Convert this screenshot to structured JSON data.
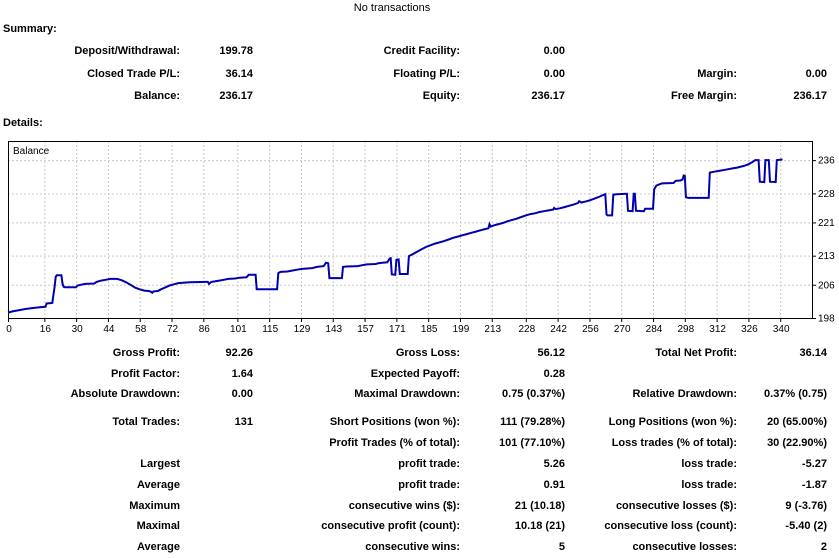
{
  "header": {
    "no_transactions": "No transactions"
  },
  "summary": {
    "title": "Summary:",
    "rows": [
      [
        [
          "Deposit/Withdrawal:",
          "199.78"
        ],
        [
          "Credit Facility:",
          "0.00"
        ],
        [
          "",
          ""
        ]
      ],
      [
        [
          "Closed Trade P/L:",
          "36.14"
        ],
        [
          "Floating P/L:",
          "0.00"
        ],
        [
          "Margin:",
          "0.00"
        ]
      ],
      [
        [
          "Balance:",
          "236.17"
        ],
        [
          "Equity:",
          "236.17"
        ],
        [
          "Free Margin:",
          "236.17"
        ]
      ]
    ]
  },
  "details": {
    "title": "Details:"
  },
  "stats": {
    "block1": [
      [
        [
          "Gross Profit:",
          "92.26"
        ],
        [
          "Gross Loss:",
          "56.12"
        ],
        [
          "Total Net Profit:",
          "36.14"
        ]
      ],
      [
        [
          "Profit Factor:",
          "1.64"
        ],
        [
          "Expected Payoff:",
          "0.28"
        ],
        [
          "",
          ""
        ]
      ],
      [
        [
          "Absolute Drawdown:",
          "0.00"
        ],
        [
          "Maximal Drawdown:",
          "0.75 (0.37%)"
        ],
        [
          "Relative Drawdown:",
          "0.37% (0.75)"
        ]
      ]
    ],
    "block2": [
      [
        [
          "Total Trades:",
          "131"
        ],
        [
          "Short Positions (won %):",
          "111 (79.28%)"
        ],
        [
          "Long Positions (won %):",
          "20 (65.00%)"
        ]
      ],
      [
        [
          "",
          ""
        ],
        [
          "Profit Trades (% of total):",
          "101 (77.10%)"
        ],
        [
          "Loss trades (% of total):",
          "30 (22.90%)"
        ]
      ],
      [
        [
          "Largest",
          ""
        ],
        [
          "profit trade:",
          "5.26"
        ],
        [
          "loss trade:",
          "-5.27"
        ]
      ],
      [
        [
          "Average",
          ""
        ],
        [
          "profit trade:",
          "0.91"
        ],
        [
          "loss trade:",
          "-1.87"
        ]
      ],
      [
        [
          "Maximum",
          ""
        ],
        [
          "consecutive wins ($):",
          "21 (10.18)"
        ],
        [
          "consecutive losses ($):",
          "9 (-3.76)"
        ]
      ],
      [
        [
          "Maximal",
          ""
        ],
        [
          "consecutive profit (count):",
          "10.18 (21)"
        ],
        [
          "consecutive loss (count):",
          "-5.40 (2)"
        ]
      ],
      [
        [
          "Average",
          ""
        ],
        [
          "consecutive wins:",
          "5"
        ],
        [
          "consecutive losses:",
          "2"
        ]
      ]
    ]
  },
  "chart_data": {
    "type": "line",
    "title": "Balance",
    "legend_label": "Balance",
    "x_ticks": [
      0,
      16,
      30,
      44,
      58,
      72,
      86,
      101,
      115,
      129,
      143,
      157,
      171,
      185,
      199,
      213,
      228,
      242,
      256,
      270,
      284,
      298,
      312,
      326,
      340
    ],
    "y_ticks": [
      198,
      206,
      213,
      221,
      228,
      236
    ],
    "y_gridlines": [
      206,
      213,
      221,
      228,
      236
    ],
    "x_range": [
      0,
      354
    ],
    "y_range": [
      198,
      240.6
    ],
    "line_color": "#0000B0",
    "grid_color": "#C9C9C9",
    "border_color": "#000000",
    "series": [
      {
        "name": "Balance",
        "points": [
          [
            0,
            199.3
          ],
          [
            2,
            199.6
          ],
          [
            5,
            199.9
          ],
          [
            8,
            200.2
          ],
          [
            11,
            200.4
          ],
          [
            14,
            200.6
          ],
          [
            16.5,
            200.7
          ],
          [
            17,
            201.5
          ],
          [
            19.5,
            201.6
          ],
          [
            20,
            203.5
          ],
          [
            20.5,
            205.5
          ],
          [
            21,
            207.9
          ],
          [
            21.5,
            208.3
          ],
          [
            23.5,
            208.3
          ],
          [
            24,
            206.3
          ],
          [
            24.5,
            205.5
          ],
          [
            25,
            205.4
          ],
          [
            30,
            205.4
          ],
          [
            30.5,
            205.8
          ],
          [
            32,
            206.0
          ],
          [
            34,
            206.2
          ],
          [
            38,
            206.3
          ],
          [
            39,
            206.7
          ],
          [
            41,
            207.0
          ],
          [
            43,
            207.2
          ],
          [
            45,
            207.4
          ],
          [
            48,
            207.4
          ],
          [
            50,
            207.1
          ],
          [
            52,
            206.6
          ],
          [
            54,
            206.0
          ],
          [
            56,
            205.3
          ],
          [
            58,
            204.9
          ],
          [
            60,
            204.6
          ],
          [
            62,
            204.5
          ],
          [
            63,
            204.3
          ],
          [
            63.5,
            204.1
          ],
          [
            64,
            204.4
          ],
          [
            66,
            204.5
          ],
          [
            67,
            204.8
          ],
          [
            69,
            205.3
          ],
          [
            71,
            205.8
          ],
          [
            73,
            206.1
          ],
          [
            75,
            206.4
          ],
          [
            77,
            206.5
          ],
          [
            80,
            206.6
          ],
          [
            87,
            206.7
          ],
          [
            88,
            206.7
          ],
          [
            88.5,
            206.2
          ],
          [
            89.5,
            206.7
          ],
          [
            91,
            206.8
          ],
          [
            93,
            207.0
          ],
          [
            95,
            207.2
          ],
          [
            97,
            207.4
          ],
          [
            100,
            207.5
          ],
          [
            102,
            207.7
          ],
          [
            105,
            207.8
          ],
          [
            106,
            208.4
          ],
          [
            109,
            208.4
          ],
          [
            109.5,
            204.9
          ],
          [
            118.5,
            204.9
          ],
          [
            119,
            208.8
          ],
          [
            120,
            209.1
          ],
          [
            123,
            209.2
          ],
          [
            125,
            209.4
          ],
          [
            127,
            209.6
          ],
          [
            129,
            209.8
          ],
          [
            131,
            209.9
          ],
          [
            134,
            210.0
          ],
          [
            136,
            210.3
          ],
          [
            139,
            210.5
          ],
          [
            140,
            211.3
          ],
          [
            141,
            211.2
          ],
          [
            141.5,
            207.6
          ],
          [
            147,
            207.6
          ],
          [
            147.5,
            210.3
          ],
          [
            149,
            210.4
          ],
          [
            154,
            210.5
          ],
          [
            156,
            210.7
          ],
          [
            158,
            210.9
          ],
          [
            162,
            211.0
          ],
          [
            163,
            211.2
          ],
          [
            167,
            211.4
          ],
          [
            168,
            212.3
          ],
          [
            168.5,
            212.4
          ],
          [
            169,
            208.5
          ],
          [
            170.5,
            208.4
          ],
          [
            171,
            212.0
          ],
          [
            172,
            212.1
          ],
          [
            172.5,
            208.6
          ],
          [
            176,
            208.6
          ],
          [
            176.5,
            212.9
          ],
          [
            178,
            213.3
          ],
          [
            180,
            213.9
          ],
          [
            182,
            214.5
          ],
          [
            184,
            215.1
          ],
          [
            186,
            215.5
          ],
          [
            188,
            215.9
          ],
          [
            190,
            216.2
          ],
          [
            192,
            216.5
          ],
          [
            194,
            216.9
          ],
          [
            196,
            217.3
          ],
          [
            198,
            217.6
          ],
          [
            200,
            217.9
          ],
          [
            202,
            218.2
          ],
          [
            204,
            218.5
          ],
          [
            206,
            218.8
          ],
          [
            208,
            219.1
          ],
          [
            210,
            219.4
          ],
          [
            211.5,
            219.6
          ],
          [
            212,
            220.6
          ],
          [
            212.5,
            220.0
          ],
          [
            214,
            220.3
          ],
          [
            216,
            220.6
          ],
          [
            218,
            220.9
          ],
          [
            220,
            221.3
          ],
          [
            222,
            221.6
          ],
          [
            224,
            221.9
          ],
          [
            226,
            222.3
          ],
          [
            228,
            222.7
          ],
          [
            230,
            223.0
          ],
          [
            232,
            223.2
          ],
          [
            234,
            223.5
          ],
          [
            236,
            223.7
          ],
          [
            238,
            223.9
          ],
          [
            240,
            224.1
          ],
          [
            240.5,
            224.5
          ],
          [
            241,
            224.2
          ],
          [
            243,
            224.4
          ],
          [
            245,
            224.7
          ],
          [
            247,
            225.0
          ],
          [
            249,
            225.3
          ],
          [
            251,
            225.7
          ],
          [
            251.5,
            226.1
          ],
          [
            252.5,
            225.8
          ],
          [
            254,
            226.0
          ],
          [
            256,
            226.3
          ],
          [
            258,
            226.7
          ],
          [
            260,
            227.1
          ],
          [
            262,
            227.6
          ],
          [
            263,
            227.8
          ],
          [
            263.5,
            222.9
          ],
          [
            264,
            222.7
          ],
          [
            266,
            222.7
          ],
          [
            266.5,
            227.7
          ],
          [
            268,
            227.8
          ],
          [
            272.5,
            227.9
          ],
          [
            273,
            223.8
          ],
          [
            275,
            223.7
          ],
          [
            275.5,
            227.9
          ],
          [
            276,
            227.9
          ],
          [
            276.5,
            223.8
          ],
          [
            280,
            223.7
          ],
          [
            280.5,
            224.3
          ],
          [
            284,
            224.3
          ],
          [
            284.5,
            229.0
          ],
          [
            285.5,
            229.9
          ],
          [
            287,
            230.2
          ],
          [
            288,
            230.4
          ],
          [
            293,
            230.5
          ],
          [
            294,
            231.0
          ],
          [
            296,
            231.1
          ],
          [
            297,
            231.3
          ],
          [
            297.5,
            232.3
          ],
          [
            298,
            232.2
          ],
          [
            298.5,
            227.1
          ],
          [
            299.5,
            226.9
          ],
          [
            308.5,
            226.9
          ],
          [
            309,
            233.0
          ],
          [
            311,
            233.2
          ],
          [
            313,
            233.4
          ],
          [
            316,
            233.7
          ],
          [
            319,
            234.0
          ],
          [
            321,
            234.2
          ],
          [
            324,
            234.6
          ],
          [
            326,
            235.0
          ],
          [
            328,
            235.6
          ],
          [
            329,
            236.0
          ],
          [
            330.5,
            236.0
          ],
          [
            331,
            230.8
          ],
          [
            333,
            230.7
          ],
          [
            333.5,
            236.0
          ],
          [
            335,
            236.0
          ],
          [
            335.5,
            230.8
          ],
          [
            338,
            230.7
          ],
          [
            338.5,
            236.0
          ],
          [
            340,
            236.1
          ],
          [
            341,
            236.2
          ]
        ]
      }
    ]
  }
}
